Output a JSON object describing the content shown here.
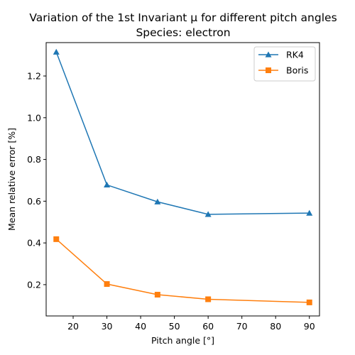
{
  "chart_data": {
    "type": "line",
    "title_line1": "Variation of the 1st Invariant μ for different pitch angles",
    "title_line2": "Species: electron",
    "xlabel": "Pitch angle [°]",
    "ylabel": "Mean relative error [%]",
    "x": [
      15,
      30,
      45,
      60,
      90
    ],
    "xlim": [
      12,
      93
    ],
    "ylim": [
      0.05,
      1.36
    ],
    "xticks": [
      20,
      30,
      40,
      50,
      60,
      70,
      80,
      90
    ],
    "yticks": [
      0.2,
      0.4,
      0.6,
      0.8,
      1.0,
      1.2
    ],
    "grid": false,
    "legend_position": "top-right",
    "series": [
      {
        "name": "RK4",
        "marker": "triangle",
        "color": "#1f77b4",
        "values": [
          1.315,
          0.678,
          0.597,
          0.537,
          0.543
        ]
      },
      {
        "name": "Boris",
        "marker": "square",
        "color": "#ff7f0e",
        "values": [
          0.418,
          0.203,
          0.152,
          0.13,
          0.115
        ]
      }
    ]
  }
}
